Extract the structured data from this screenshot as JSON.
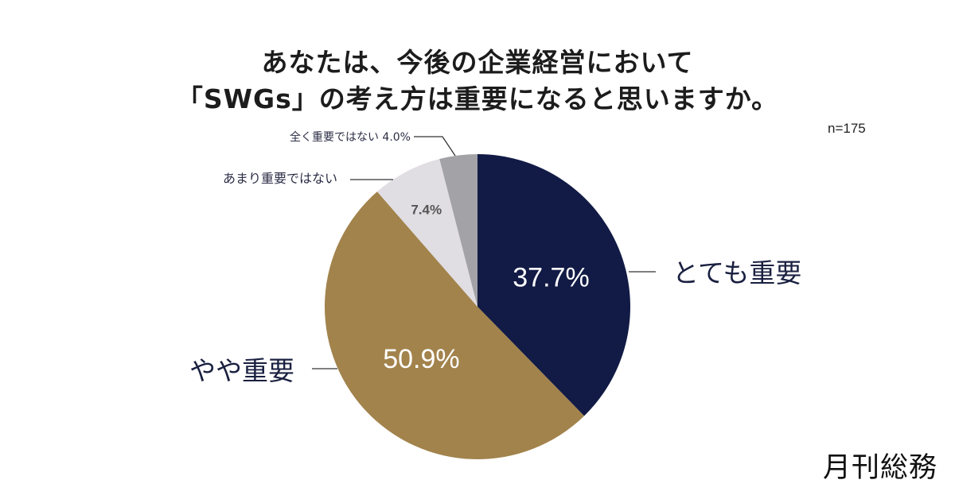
{
  "title_line1": "あなたは、今後の企業経営において",
  "title_line2": "「SWGs」の考え方は重要になると思いますか。",
  "sample_size": "n=175",
  "brand": "月刊総務",
  "chart_data": {
    "type": "pie",
    "title": "あなたは、今後の企業経営において「SWGs」の考え方は重要になると思いますか。",
    "start_angle_deg": 0,
    "direction": "clockwise",
    "slices": [
      {
        "label": "とても重要",
        "value": 37.7,
        "value_label": "37.7%",
        "color": "#121b45"
      },
      {
        "label": "やや重要",
        "value": 50.9,
        "value_label": "50.9%",
        "color": "#a2834c"
      },
      {
        "label": "あまり重要ではない",
        "value": 7.4,
        "value_label": "7.4%",
        "color": "#e0dde3"
      },
      {
        "label": "全く重要ではない",
        "value": 4.0,
        "value_label": "4.0%",
        "color": "#a3a2a6"
      }
    ]
  }
}
